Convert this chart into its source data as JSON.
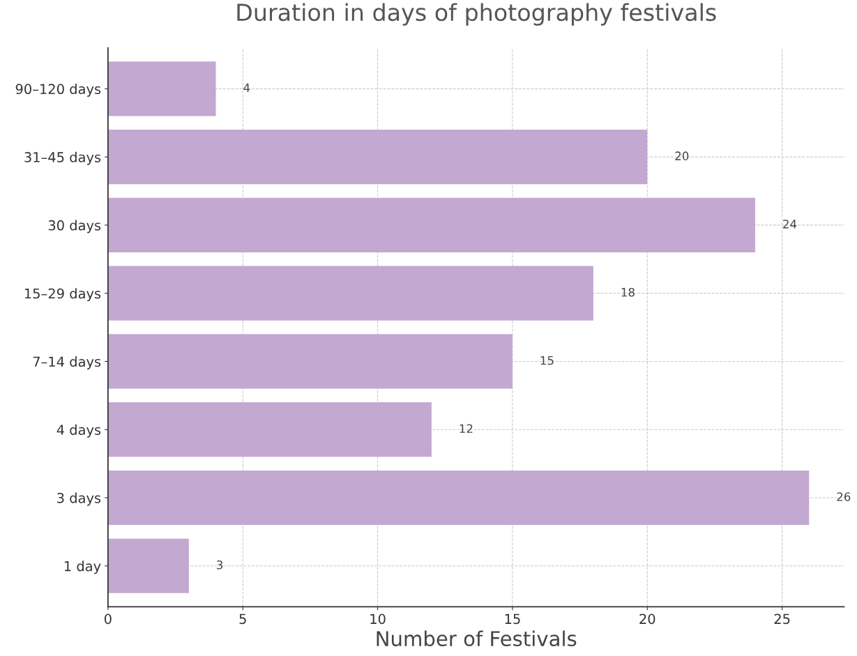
{
  "chart_data": {
    "type": "bar",
    "orientation": "horizontal",
    "title": "Duration in days of photography festivals",
    "xlabel": "Number of Festivals",
    "categories": [
      "90–120 days",
      "31–45 days",
      "30 days",
      "15–29 days",
      "7–14 days",
      "4 days",
      "3 days",
      "1 day"
    ],
    "values": [
      4,
      20,
      24,
      18,
      15,
      12,
      26,
      3
    ],
    "color": "#c3a8d1",
    "xlim": [
      0,
      27.3
    ],
    "xticks": [
      0,
      5,
      10,
      15,
      20,
      25
    ],
    "grid": true,
    "data_labels": true
  }
}
